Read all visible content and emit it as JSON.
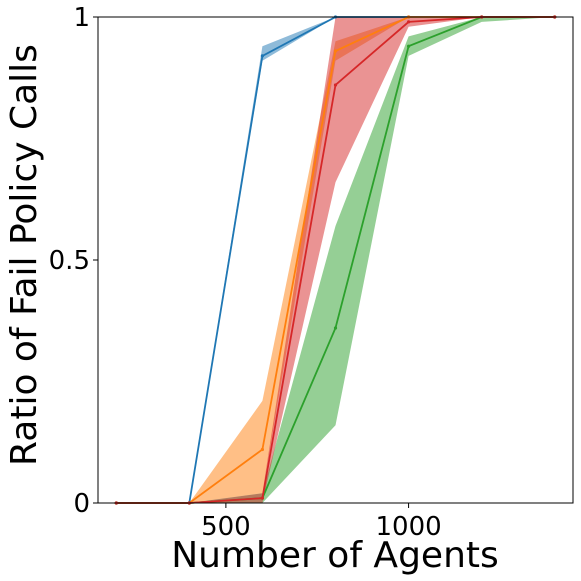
{
  "chart_data": {
    "type": "line",
    "title": "",
    "xlabel": "Number of Agents",
    "ylabel": "Ratio of Fail Policy Calls",
    "xlim": [
      150,
      1450
    ],
    "ylim": [
      0,
      1
    ],
    "xticks": [
      500,
      1000
    ],
    "xtick_labels": [
      "500",
      "1000"
    ],
    "yticks": [
      0,
      0.5,
      1
    ],
    "ytick_labels": [
      "0",
      "0.5",
      "1"
    ],
    "grid": false,
    "legend": "none",
    "series": [
      {
        "color": "#1f77b4",
        "x": [
          200,
          400,
          600,
          800,
          1000,
          1200,
          1400
        ],
        "y": [
          0,
          0,
          0.92,
          1,
          1,
          1,
          1
        ],
        "lower": [
          0,
          0,
          0.91,
          1,
          1,
          1,
          1
        ],
        "upper": [
          0,
          0,
          0.94,
          1,
          1,
          1,
          1
        ]
      },
      {
        "color": "#ff7f0e",
        "x": [
          200,
          400,
          600,
          800,
          1000,
          1200,
          1400
        ],
        "y": [
          0,
          0,
          0.11,
          0.93,
          1,
          1,
          1
        ],
        "lower": [
          0,
          0,
          0.02,
          0.91,
          1,
          1,
          1
        ],
        "upper": [
          0,
          0,
          0.21,
          0.95,
          1,
          1,
          1
        ]
      },
      {
        "color": "#2ca02c",
        "x": [
          200,
          400,
          600,
          800,
          1000,
          1200,
          1400
        ],
        "y": [
          0,
          0,
          0.01,
          0.36,
          0.94,
          1,
          1
        ],
        "lower": [
          0,
          0,
          0,
          0.16,
          0.92,
          0.99,
          1
        ],
        "upper": [
          0,
          0,
          0.02,
          0.57,
          0.96,
          1,
          1
        ]
      },
      {
        "color": "#d62728",
        "x": [
          200,
          400,
          600,
          800,
          1000,
          1200,
          1400
        ],
        "y": [
          0,
          0,
          0.01,
          0.86,
          0.99,
          1,
          1
        ],
        "lower": [
          0,
          0,
          0,
          0.66,
          0.98,
          1,
          1
        ],
        "upper": [
          0,
          0,
          0.02,
          1,
          1,
          1,
          1
        ]
      }
    ]
  }
}
